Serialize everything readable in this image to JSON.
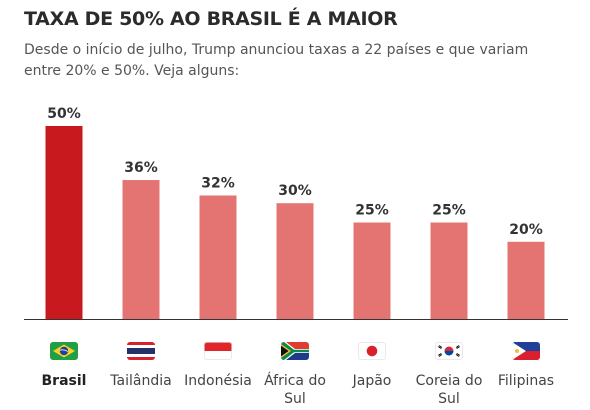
{
  "header": {
    "title": "TAXA DE 50% AO BRASIL É A MAIOR",
    "subtitle": "Desde o início de julho, Trump anunciou taxas a 22 países e que variam entre 20% e 50%. Veja alguns:"
  },
  "colors": {
    "highlight": "#c8191e",
    "bar": "#e47472",
    "axis": "#333333",
    "label": "#444444"
  },
  "chart_data": {
    "type": "bar",
    "title": "TAXA DE 50% AO BRASIL É A MAIOR",
    "subtitle": "Desde o início de julho, Trump anunciou taxas a 22 países e que variam entre 20% e 50%. Veja alguns:",
    "categories": [
      "Brasil",
      "Tailândia",
      "Indonésia",
      "África do Sul",
      "Japão",
      "Coreia do Sul",
      "Filipinas"
    ],
    "values": [
      50,
      36,
      32,
      30,
      25,
      25,
      20
    ],
    "data_labels": [
      "50%",
      "36%",
      "32%",
      "30%",
      "25%",
      "25%",
      "20%"
    ],
    "highlighted_category": "Brasil",
    "flags": [
      "brazil-flag-icon",
      "thailand-flag-icon",
      "indonesia-flag-icon",
      "south-africa-flag-icon",
      "japan-flag-icon",
      "south-korea-flag-icon",
      "philippines-flag-icon"
    ],
    "xlabel": "",
    "ylabel": "",
    "ylim": [
      0,
      50
    ],
    "grid": false
  }
}
